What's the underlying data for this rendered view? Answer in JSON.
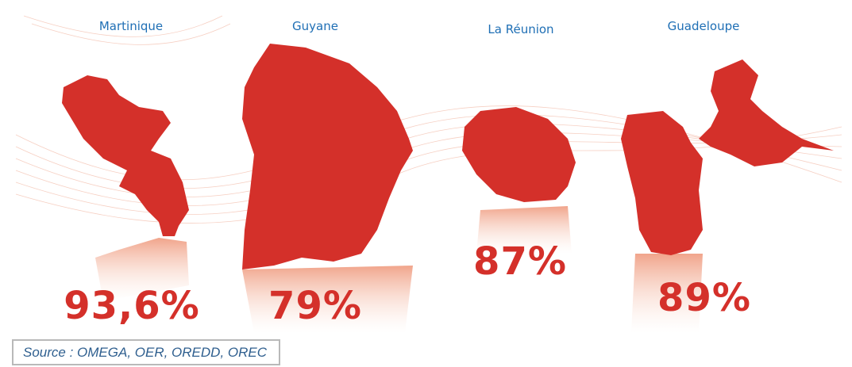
{
  "regions": [
    {
      "name": "Martinique",
      "value": "93,6%"
    },
    {
      "name": "Guyane",
      "value": "79%"
    },
    {
      "name": "La Réunion",
      "value": "87%"
    },
    {
      "name": "Guadeloupe",
      "value": "89%"
    }
  ],
  "source": "Source : OMEGA, OER, OREDD, OREC"
}
